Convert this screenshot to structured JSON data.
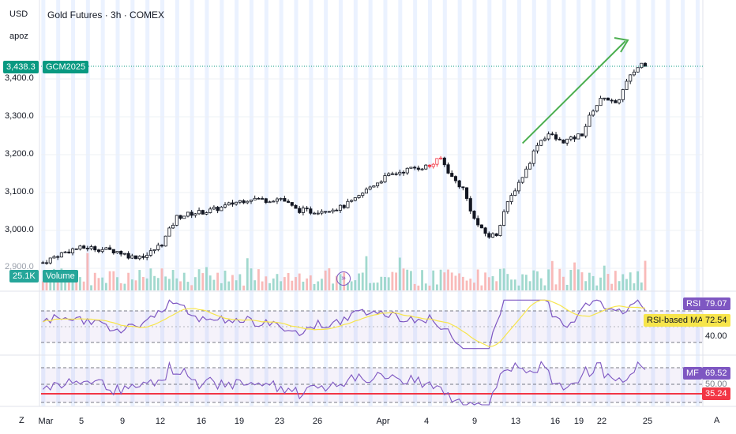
{
  "header": {
    "currency": "USD",
    "scale_mode": "apoz",
    "title": "Gold Futures · 3h · COMEX"
  },
  "price_panel": {
    "last_price": "3,438.3",
    "symbol_tag": "GCM2025",
    "y_ticks": [
      "3,400.0",
      "3,300.0",
      "3,200.0",
      "3,100.0",
      "3,000.0",
      "2,900.0"
    ],
    "volume_value": "25.1K",
    "volume_label": "Volume"
  },
  "rsi_panel": {
    "rsi_label": "RSI",
    "rsi_value": "79.07",
    "ma_label": "RSI-based MA",
    "ma_value": "72.54",
    "level_label": "40.00"
  },
  "mfi_panel": {
    "mfi_label": "MF",
    "mfi_value": "69.52",
    "level_mid": "50.00",
    "level_low": "35.24"
  },
  "x_axis": {
    "labels": [
      "Mar",
      "5",
      "9",
      "12",
      "16",
      "19",
      "23",
      "26",
      "Apr",
      "4",
      "9",
      "13",
      "16",
      "19",
      "22",
      "25"
    ],
    "left_button": "Z",
    "right_button": "A"
  },
  "colors": {
    "up": "#089981",
    "down": "#f23645",
    "candle": "#131722",
    "rsi_line": "#7e57c2",
    "rsi_ma": "#f7e54b",
    "trend_arrow": "#4caf50",
    "volume_badge": "#26a69a",
    "session_shade": "#dbe7ff"
  },
  "chart_data": {
    "type": "candlestick",
    "title": "Gold Futures · 3h · COMEX",
    "y_unit": "USD",
    "ylim": [
      2870,
      3480
    ],
    "last_price": 3438.3,
    "x_labels": [
      "Mar",
      "5",
      "9",
      "12",
      "16",
      "19",
      "23",
      "26",
      "Apr",
      "4",
      "9",
      "13",
      "16",
      "19",
      "22",
      "25"
    ],
    "close_path": [
      [
        0,
        2915
      ],
      [
        4,
        2935
      ],
      [
        8,
        2950
      ],
      [
        12,
        2955
      ],
      [
        16,
        2950
      ],
      [
        20,
        2945
      ],
      [
        24,
        2930
      ],
      [
        28,
        2935
      ],
      [
        32,
        2965
      ],
      [
        36,
        3035
      ],
      [
        40,
        3045
      ],
      [
        44,
        3050
      ],
      [
        48,
        3060
      ],
      [
        52,
        3075
      ],
      [
        56,
        3085
      ],
      [
        60,
        3080
      ],
      [
        64,
        3085
      ],
      [
        68,
        3055
      ],
      [
        72,
        3050
      ],
      [
        76,
        3055
      ],
      [
        80,
        3060
      ],
      [
        84,
        3080
      ],
      [
        88,
        3115
      ],
      [
        92,
        3140
      ],
      [
        96,
        3155
      ],
      [
        100,
        3165
      ],
      [
        104,
        3170
      ],
      [
        107,
        3190
      ],
      [
        110,
        3140
      ],
      [
        113,
        3110
      ],
      [
        116,
        3030
      ],
      [
        118,
        3000
      ],
      [
        120,
        2985
      ],
      [
        122,
        2990
      ],
      [
        124,
        3050
      ],
      [
        127,
        3110
      ],
      [
        130,
        3160
      ],
      [
        133,
        3230
      ],
      [
        136,
        3255
      ],
      [
        139,
        3235
      ],
      [
        142,
        3240
      ],
      [
        145,
        3255
      ],
      [
        148,
        3320
      ],
      [
        151,
        3355
      ],
      [
        154,
        3330
      ],
      [
        157,
        3390
      ],
      [
        159,
        3420
      ],
      [
        161,
        3440
      ]
    ],
    "rsi": {
      "name": "RSI",
      "last": 79.07,
      "ma_last": 72.54,
      "levels": [
        70,
        40
      ]
    },
    "mfi": {
      "name": "MF",
      "last": 69.52,
      "levels": [
        80,
        50,
        35.24
      ]
    },
    "trend_arrow": {
      "from": [
        129,
        3230
      ],
      "to": [
        170,
        3430
      ]
    }
  }
}
